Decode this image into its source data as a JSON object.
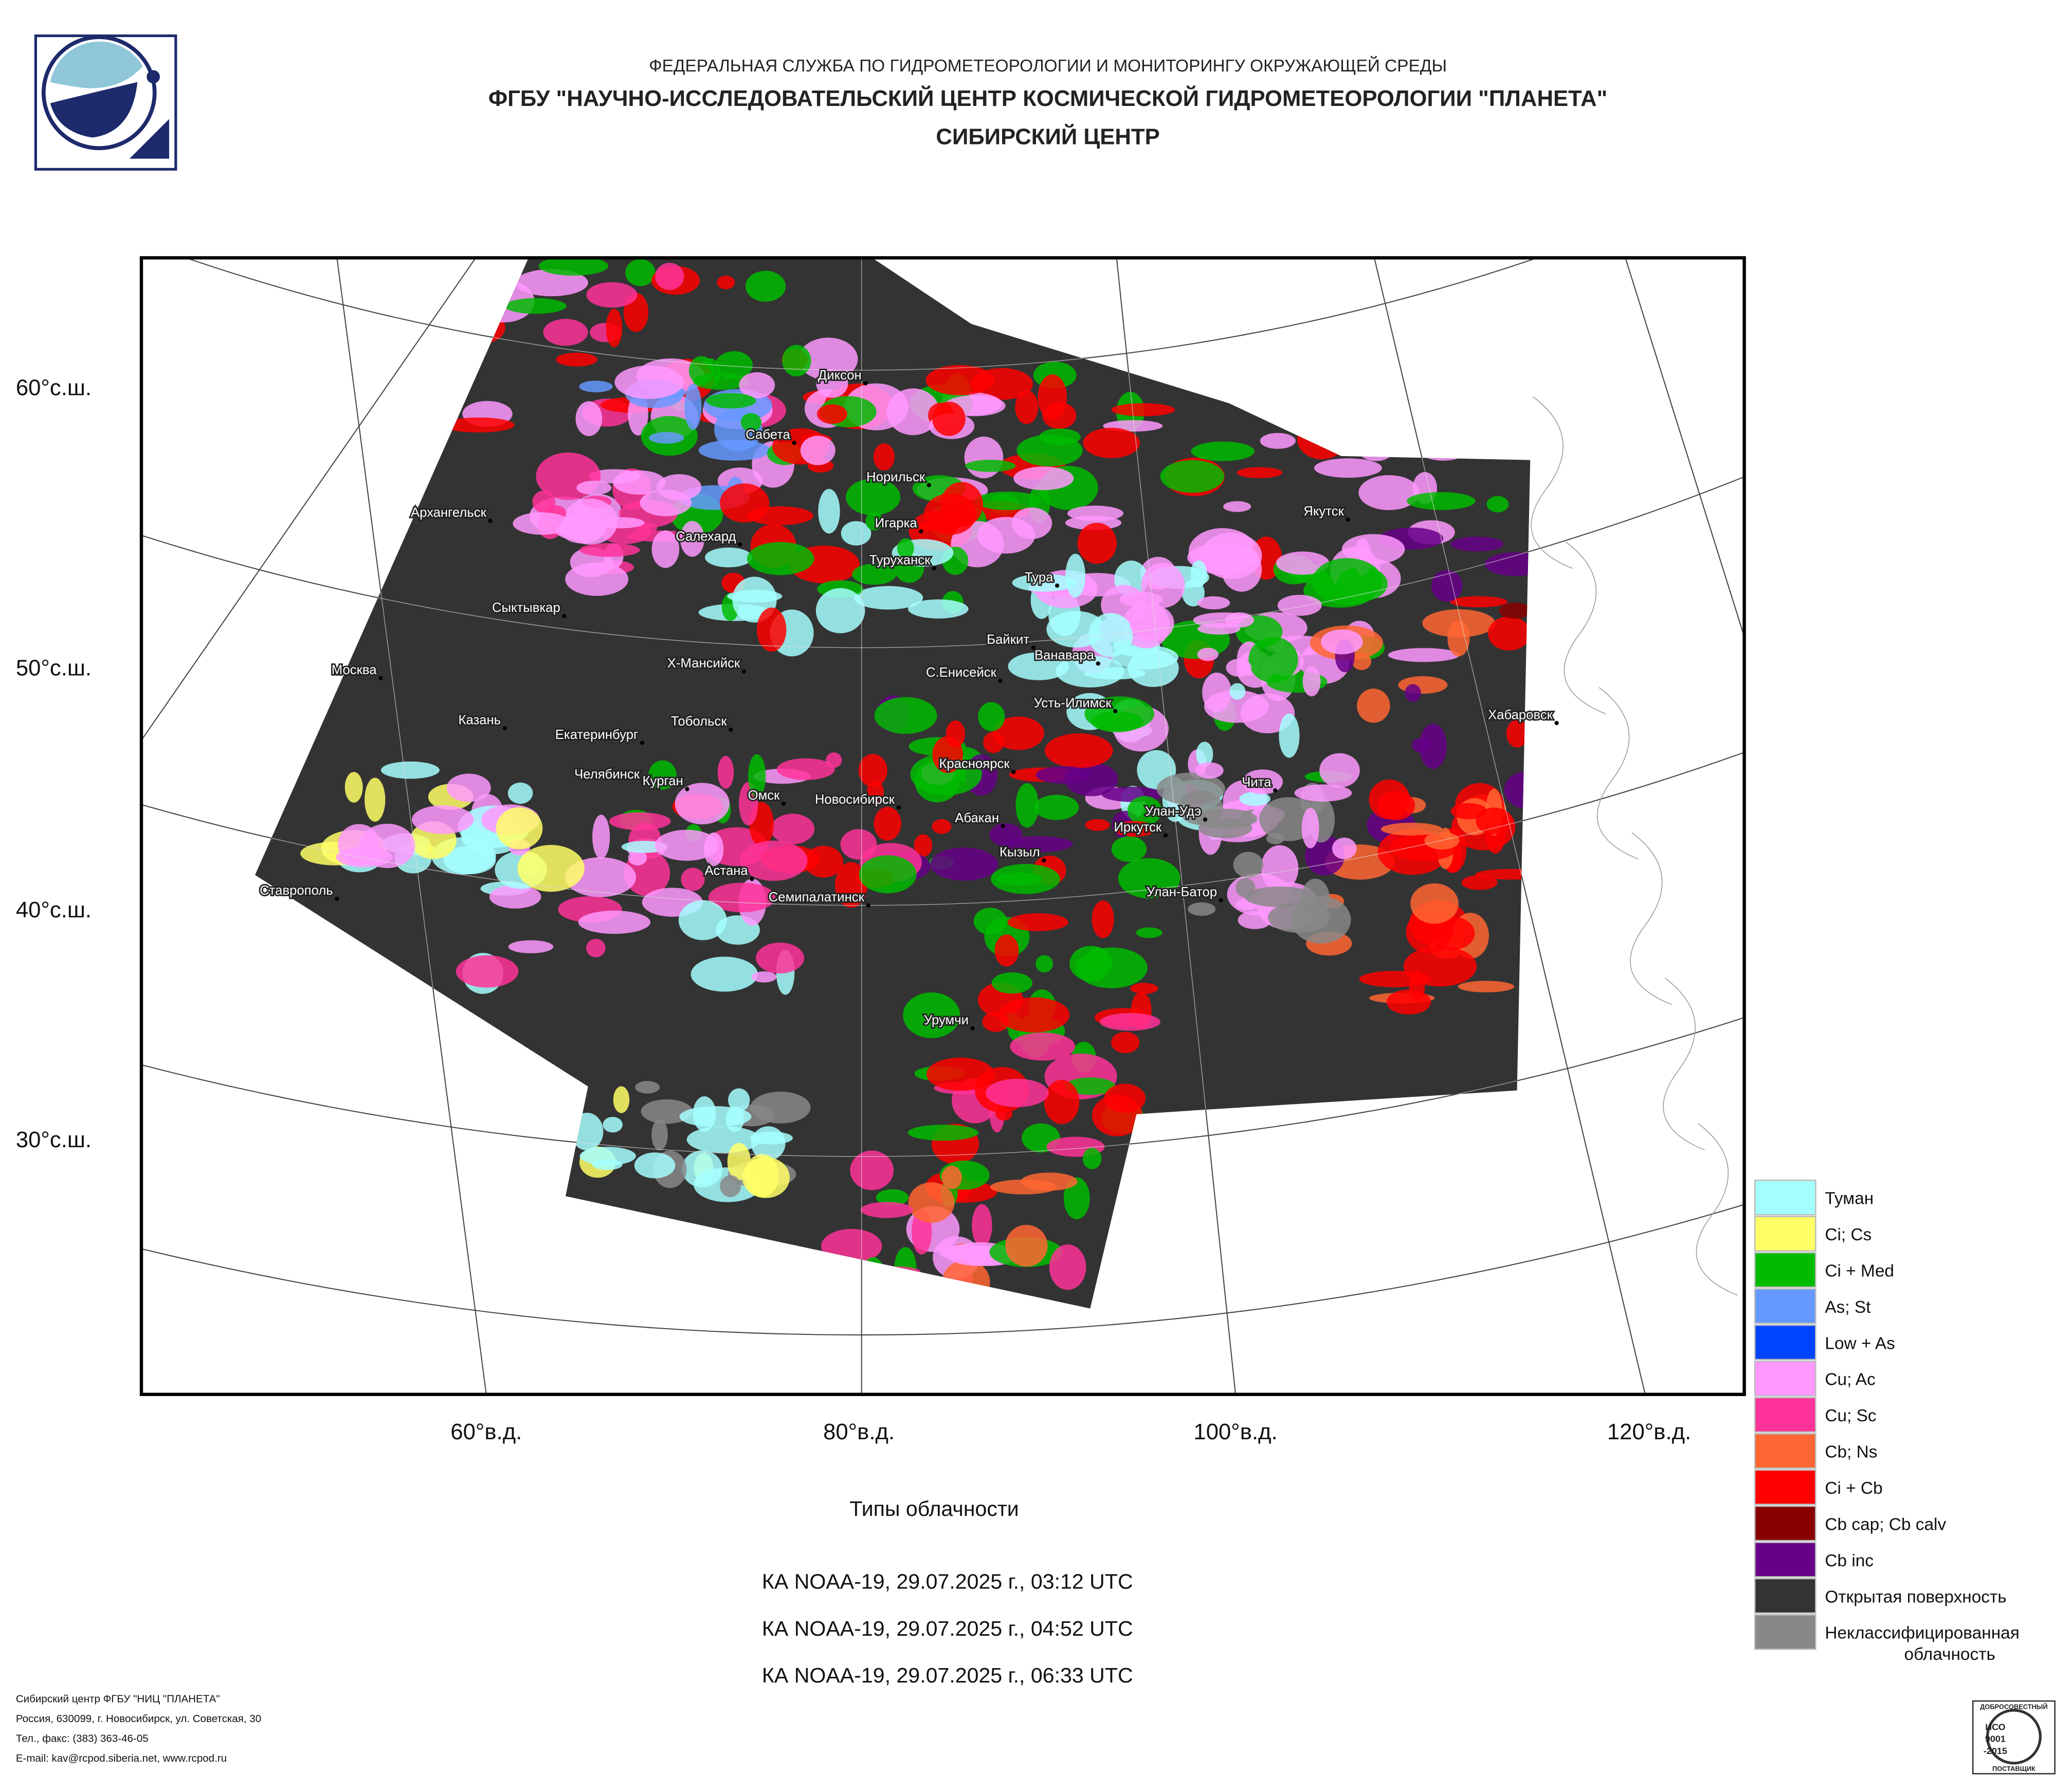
{
  "header": {
    "agency": "ФЕДЕРАЛЬНАЯ СЛУЖБА ПО ГИДРОМЕТЕОРОЛОГИИ И МОНИТОРИНГУ ОКРУЖАЮЩЕЙ СРЕДЫ",
    "center": "ФГБУ \"НАУЧНО-ИССЛЕДОВАТЕЛЬСКИЙ ЦЕНТР КОСМИЧЕСКОЙ ГИДРОМЕТЕОРОЛОГИИ \"ПЛАНЕТА\"",
    "branch": "СИБИРСКИЙ ЦЕНТР"
  },
  "map": {
    "lat_labels": [
      "60°с.ш.",
      "50°с.ш.",
      "40°с.ш.",
      "30°с.ш."
    ],
    "lon_labels": [
      "60°в.д.",
      "80°в.д.",
      "100°в.д.",
      "120°в.д."
    ],
    "cities": [
      "Диксон",
      "Сабета",
      "Норильск",
      "Архангельск",
      "Игарка",
      "Салехард",
      "Туруханск",
      "Тура",
      "Якутск",
      "Сыктывкар",
      "Байкит",
      "Ванавара",
      "Москва",
      "Х-Мансийск",
      "С.Енисейск",
      "Усть-Илимск",
      "Хабаровск",
      "Казань",
      "Тобольск",
      "Екатеринбург",
      "Красноярск",
      "Челябинск",
      "Курган",
      "Чита",
      "Омск",
      "Новосибирск",
      "Улан-Удэ",
      "Абакан",
      "Иркутск",
      "Кызыл",
      "Астана",
      "Ставрополь",
      "Семипалатинск",
      "Улан-Батор",
      "Урумчи"
    ]
  },
  "legend": {
    "items": [
      {
        "label": "Туман",
        "color": "#a6ffff"
      },
      {
        "label": "Ci; Cs",
        "color": "#ffff66"
      },
      {
        "label": "Ci + Med",
        "color": "#00bb00"
      },
      {
        "label": "As; St",
        "color": "#6699ff"
      },
      {
        "label": "Low + As",
        "color": "#0044ff"
      },
      {
        "label": "Cu; Ac",
        "color": "#ff99ff"
      },
      {
        "label": "Cu; Sc",
        "color": "#ff3399"
      },
      {
        "label": "Cb; Ns",
        "color": "#ff6633"
      },
      {
        "label": "Ci + Cb",
        "color": "#ff0000"
      },
      {
        "label": "Cb cap; Cb calv",
        "color": "#880000"
      },
      {
        "label": "Cb inc",
        "color": "#660088"
      },
      {
        "label": "Открытая поверхность",
        "color": "#333333"
      },
      {
        "label": "Неклассифицированная облачность",
        "color": "#888888"
      }
    ]
  },
  "caption": {
    "title": "Типы облачности",
    "passes": [
      "КА NOAA-19, 29.07.2025 г., 03:12 UTC",
      "КА NOAA-19, 29.07.2025 г., 04:52 UTC",
      "КА NOAA-19, 29.07.2025 г., 06:33 UTC"
    ]
  },
  "footer": {
    "lines": [
      "Сибирский центр ФГБУ \"НИЦ \"ПЛАНЕТА\"",
      "Россия, 630099, г. Новосибирск, ул. Советская, 30",
      "Тел., факс: (383) 363-46-05",
      "E-mail: kav@rcpod.siberia.net, www.rcpod.ru"
    ]
  },
  "badge": {
    "lines": [
      "ДОБРОСОВЕСТНЫЙ",
      "ИСО",
      "9001",
      "-2015",
      "ПОСТАВЩИК"
    ]
  }
}
